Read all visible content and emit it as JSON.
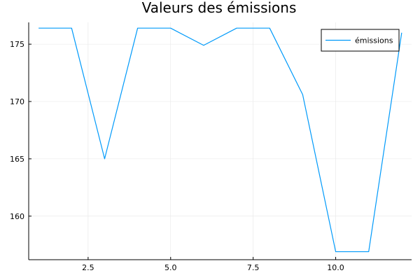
{
  "chart_data": {
    "type": "line",
    "title": "Valeurs des émissions",
    "xlabel": "",
    "ylabel": "",
    "xlim": [
      0.7,
      12.3
    ],
    "ylim": [
      156.2,
      176.9
    ],
    "xticks": [
      2.5,
      5.0,
      7.5,
      10.0
    ],
    "xtick_labels": [
      "2.5",
      "5.0",
      "7.5",
      "10.0"
    ],
    "yticks": [
      160,
      165,
      170,
      175
    ],
    "ytick_labels": [
      "160",
      "165",
      "170",
      "175"
    ],
    "grid": true,
    "legend_position": "top-right",
    "series": [
      {
        "name": "émissions",
        "color": "#009AFA",
        "x": [
          1,
          2,
          3,
          4,
          5,
          6,
          7,
          8,
          9,
          10,
          11,
          12
        ],
        "y": [
          176.4,
          176.4,
          165.0,
          176.4,
          176.4,
          174.9,
          176.4,
          176.4,
          170.6,
          156.9,
          156.9,
          176.0
        ]
      }
    ]
  }
}
